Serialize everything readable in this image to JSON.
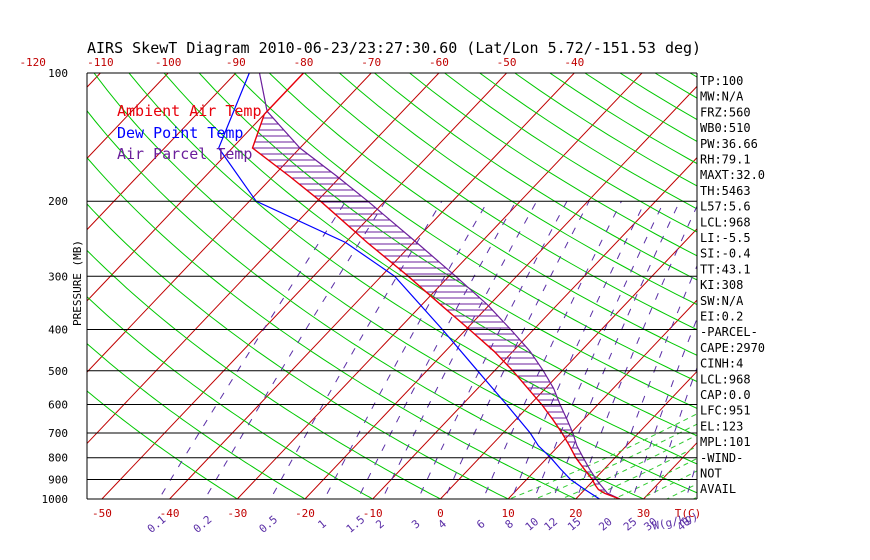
{
  "chart_data": {
    "type": "skewt",
    "title": "AIRS SkewT Diagram 2010-06-23/23:27:30.60 (Lat/Lon 5.72/-151.53 deg)",
    "ylabel": "PRESSURE (MB)",
    "xlabel_unit": "T(C)",
    "mixing_unit": "W(g/kg)",
    "legend": [
      "Ambient Air Temp",
      "Dew Point Temp",
      "Air Parcel Temp"
    ],
    "colors": {
      "ambient": "#e8000b",
      "dewpoint": "#0000ff",
      "parcel": "#6b1f9c",
      "isotherm": "#c00000",
      "dry_adiabat": "#00c800",
      "moist_adiabat": "#33cc33",
      "mixing_ratio": "#5a2ea6",
      "isobar": "#000000",
      "bottom_ticks": "#c00000",
      "top_ticks": "#c00000"
    },
    "pressure_levels": [
      100,
      200,
      300,
      400,
      500,
      600,
      700,
      800,
      900,
      1000
    ],
    "top_temp_ticks": [
      -120,
      -110,
      -100,
      -90,
      -80,
      -70,
      -60,
      -50,
      -40
    ],
    "bottom_temp_ticks": [
      -50,
      -40,
      -30,
      -20,
      -10,
      0,
      10,
      20,
      30
    ],
    "mixing_ratio_labels": [
      "0.1",
      "0.2",
      "0.5",
      "1",
      "1.5",
      "2",
      "3",
      "4",
      "6",
      "8",
      "10",
      "12",
      "15",
      "20",
      "25",
      "30",
      "40"
    ],
    "mixing_ratio_values": [
      0.1,
      0.2,
      0.5,
      1,
      1.5,
      2,
      3,
      4,
      6,
      8,
      10,
      12,
      15,
      20,
      25,
      30,
      40
    ],
    "ambient_temperature": {
      "pressure": [
        1000,
        970,
        950,
        925,
        900,
        850,
        800,
        750,
        700,
        650,
        600,
        550,
        500,
        450,
        400,
        350,
        300,
        250,
        200,
        175,
        150,
        125,
        100
      ],
      "temp_c": [
        26.5,
        23.5,
        22.0,
        20.8,
        19.7,
        17.0,
        14.2,
        11.6,
        8.7,
        5.4,
        1.7,
        -2.6,
        -7.3,
        -12.8,
        -19.5,
        -27.2,
        -36.0,
        -46.8,
        -59.5,
        -67.5,
        -77.0,
        -80.0,
        -80.0
      ]
    },
    "dewpoint_temperature": {
      "pressure": [
        1000,
        950,
        900,
        850,
        800,
        750,
        700,
        600,
        500,
        400,
        300,
        250,
        200,
        150,
        100
      ],
      "temp_c": [
        23.5,
        20.0,
        16.5,
        13.5,
        10.5,
        7.0,
        4.0,
        -3.5,
        -12.5,
        -23.5,
        -38.0,
        -50.0,
        -69.0,
        -82.0,
        -88.0
      ]
    },
    "parcel_temperature": {
      "pressure": [
        1000,
        968,
        950,
        925,
        900,
        850,
        800,
        750,
        700,
        650,
        600,
        550,
        500,
        450,
        400,
        350,
        300,
        250,
        200,
        175,
        150,
        123,
        100
      ],
      "temp_c": [
        26.5,
        23.8,
        22.9,
        21.6,
        20.3,
        17.8,
        15.3,
        12.7,
        10.3,
        7.5,
        4.4,
        1.2,
        -2.8,
        -7.5,
        -13.4,
        -20.3,
        -29.0,
        -39.5,
        -52.5,
        -60.5,
        -70.0,
        -80.0,
        -86.5
      ]
    },
    "indices": [
      "TP:100",
      "MW:N/A",
      "FRZ:560",
      "WB0:510",
      "PW:36.66",
      "RH:79.1",
      "MAXT:32.0",
      "TH:5463",
      "L57:5.6",
      "LCL:968",
      "LI:-5.5",
      "SI:-0.4",
      "TT:43.1",
      "KI:308",
      "SW:N/A",
      "EI:0.2",
      "-PARCEL-",
      "CAPE:2970",
      "CINH:4",
      "LCL:968",
      "CAP:0.0",
      "LFC:951",
      "EL:123",
      "MPL:101",
      "-WIND-",
      "NOT",
      "AVAIL"
    ]
  }
}
